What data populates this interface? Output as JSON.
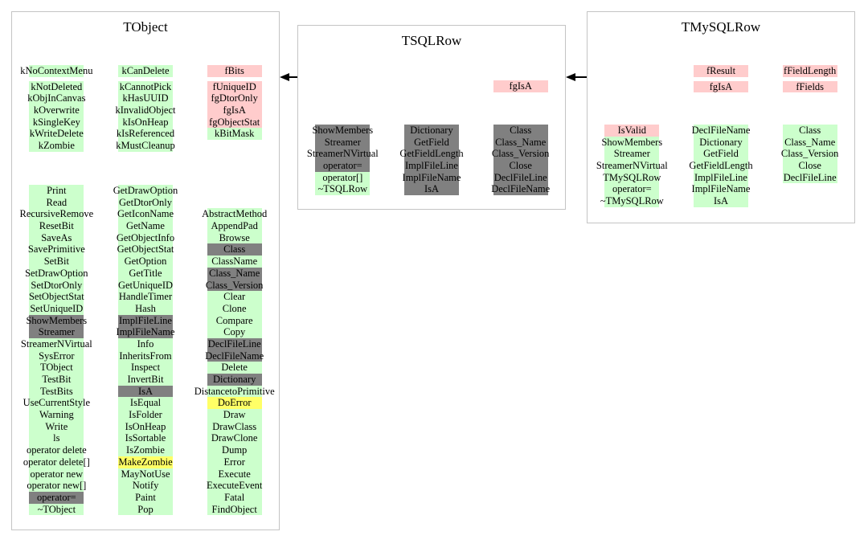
{
  "colors": {
    "green": "#ccffcc",
    "pink": "#ffcccc",
    "gray": "#808080",
    "yellow": "#ffff66",
    "border": "#c4c4c4",
    "arrow": "#000000",
    "background": "#ffffff"
  },
  "relations": [
    {
      "from": "TSQLRow",
      "to": "TObject"
    },
    {
      "from": "TMySQLRow",
      "to": "TSQLRow"
    }
  ],
  "boxes": [
    {
      "title": "TObject",
      "sections": [
        {
          "name": "data-members-and-enums",
          "gap_after_first": true,
          "columns": [
            [
              [
                "kNoContextMenu",
                "green"
              ],
              [
                "kNotDeleted",
                "green"
              ],
              [
                "kObjInCanvas",
                "green"
              ],
              [
                "kOverwrite",
                "green"
              ],
              [
                "kSingleKey",
                "green"
              ],
              [
                "kWriteDelete",
                "green"
              ],
              [
                "kZombie",
                "green"
              ]
            ],
            [
              [
                "kCanDelete",
                "green"
              ],
              [
                "kCannotPick",
                "green"
              ],
              [
                "kHasUUID",
                "green"
              ],
              [
                "kInvalidObject",
                "green"
              ],
              [
                "kIsOnHeap",
                "green"
              ],
              [
                "kIsReferenced",
                "green"
              ],
              [
                "kMustCleanup",
                "green"
              ]
            ],
            [
              [
                "fBits",
                "pink"
              ],
              [
                "fUniqueID",
                "pink"
              ],
              [
                "fgDtorOnly",
                "pink"
              ],
              [
                "fgIsA",
                "pink"
              ],
              [
                "fgObjectStat",
                "pink"
              ],
              [
                "kBitMask",
                "green"
              ]
            ]
          ]
        },
        {
          "name": "methods",
          "gap_after_first": false,
          "columns": [
            [
              [
                "Print",
                "green"
              ],
              [
                "Read",
                "green"
              ],
              [
                "RecursiveRemove",
                "green"
              ],
              [
                "ResetBit",
                "green"
              ],
              [
                "SaveAs",
                "green"
              ],
              [
                "SavePrimitive",
                "green"
              ],
              [
                "SetBit",
                "green"
              ],
              [
                "SetDrawOption",
                "green"
              ],
              [
                "SetDtorOnly",
                "green"
              ],
              [
                "SetObjectStat",
                "green"
              ],
              [
                "SetUniqueID",
                "green"
              ],
              [
                "ShowMembers",
                "gray"
              ],
              [
                "Streamer",
                "gray"
              ],
              [
                "StreamerNVirtual",
                "green"
              ],
              [
                "SysError",
                "green"
              ],
              [
                "TObject",
                "green"
              ],
              [
                "TestBit",
                "green"
              ],
              [
                "TestBits",
                "green"
              ],
              [
                "UseCurrentStyle",
                "green"
              ],
              [
                "Warning",
                "green"
              ],
              [
                "Write",
                "green"
              ],
              [
                "ls",
                "green"
              ],
              [
                "operator delete",
                "green"
              ],
              [
                "operator delete[]",
                "green"
              ],
              [
                "operator new",
                "green"
              ],
              [
                "operator new[]",
                "green"
              ],
              [
                "operator=",
                "gray"
              ],
              [
                "~TObject",
                "green"
              ]
            ],
            [
              [
                "GetDrawOption",
                "green"
              ],
              [
                "GetDtorOnly",
                "green"
              ],
              [
                "GetIconName",
                "green"
              ],
              [
                "GetName",
                "green"
              ],
              [
                "GetObjectInfo",
                "green"
              ],
              [
                "GetObjectStat",
                "green"
              ],
              [
                "GetOption",
                "green"
              ],
              [
                "GetTitle",
                "green"
              ],
              [
                "GetUniqueID",
                "green"
              ],
              [
                "HandleTimer",
                "green"
              ],
              [
                "Hash",
                "green"
              ],
              [
                "ImplFileLine",
                "gray"
              ],
              [
                "ImplFileName",
                "gray"
              ],
              [
                "Info",
                "green"
              ],
              [
                "InheritsFrom",
                "green"
              ],
              [
                "Inspect",
                "green"
              ],
              [
                "InvertBit",
                "green"
              ],
              [
                "IsA",
                "gray"
              ],
              [
                "IsEqual",
                "green"
              ],
              [
                "IsFolder",
                "green"
              ],
              [
                "IsOnHeap",
                "green"
              ],
              [
                "IsSortable",
                "green"
              ],
              [
                "IsZombie",
                "green"
              ],
              [
                "MakeZombie",
                "yellow"
              ],
              [
                "MayNotUse",
                "green"
              ],
              [
                "Notify",
                "green"
              ],
              [
                "Paint",
                "green"
              ],
              [
                "Pop",
                "green"
              ]
            ],
            [
              null,
              null,
              [
                "AbstractMethod",
                "green"
              ],
              [
                "AppendPad",
                "green"
              ],
              [
                "Browse",
                "green"
              ],
              [
                "Class",
                "gray"
              ],
              [
                "ClassName",
                "green"
              ],
              [
                "Class_Name",
                "gray"
              ],
              [
                "Class_Version",
                "gray"
              ],
              [
                "Clear",
                "green"
              ],
              [
                "Clone",
                "green"
              ],
              [
                "Compare",
                "green"
              ],
              [
                "Copy",
                "green"
              ],
              [
                "DeclFileLine",
                "gray"
              ],
              [
                "DeclFileName",
                "gray"
              ],
              [
                "Delete",
                "green"
              ],
              [
                "Dictionary",
                "gray"
              ],
              [
                "DistancetoPrimitive",
                "green"
              ],
              [
                "DoError",
                "yellow"
              ],
              [
                "Draw",
                "green"
              ],
              [
                "DrawClass",
                "green"
              ],
              [
                "DrawClone",
                "green"
              ],
              [
                "Dump",
                "green"
              ],
              [
                "Error",
                "green"
              ],
              [
                "Execute",
                "green"
              ],
              [
                "ExecuteEvent",
                "green"
              ],
              [
                "Fatal",
                "green"
              ],
              [
                "FindObject",
                "green"
              ]
            ]
          ]
        }
      ]
    },
    {
      "title": "TSQLRow",
      "sections": [
        {
          "name": "data-members",
          "gap_after_first": false,
          "columns": [
            [],
            [],
            [
              [
                "fgIsA",
                "pink"
              ]
            ]
          ]
        },
        {
          "name": "methods",
          "gap_after_first": false,
          "columns": [
            [
              [
                "ShowMembers",
                "gray"
              ],
              [
                "Streamer",
                "gray"
              ],
              [
                "StreamerNVirtual",
                "gray"
              ],
              [
                "operator=",
                "gray"
              ],
              [
                "operator[]",
                "green"
              ],
              [
                "~TSQLRow",
                "green"
              ]
            ],
            [
              [
                "Dictionary",
                "gray"
              ],
              [
                "GetField",
                "gray"
              ],
              [
                "GetFieldLength",
                "gray"
              ],
              [
                "ImplFileLine",
                "gray"
              ],
              [
                "ImplFileName",
                "gray"
              ],
              [
                "IsA",
                "gray"
              ]
            ],
            [
              [
                "Class",
                "gray"
              ],
              [
                "Class_Name",
                "gray"
              ],
              [
                "Class_Version",
                "gray"
              ],
              [
                "Close",
                "gray"
              ],
              [
                "DeclFileLine",
                "gray"
              ],
              [
                "DeclFileName",
                "gray"
              ]
            ]
          ]
        }
      ]
    },
    {
      "title": "TMySQLRow",
      "sections": [
        {
          "name": "data-members",
          "gap_after_first": true,
          "columns": [
            [],
            [
              [
                "fResult",
                "pink"
              ],
              [
                "fgIsA",
                "pink"
              ]
            ],
            [
              [
                "fFieldLength",
                "pink"
              ],
              [
                "fFields",
                "pink"
              ]
            ]
          ]
        },
        {
          "name": "methods",
          "gap_after_first": false,
          "columns": [
            [
              [
                "IsValid",
                "pink"
              ],
              [
                "ShowMembers",
                "green"
              ],
              [
                "Streamer",
                "green"
              ],
              [
                "StreamerNVirtual",
                "green"
              ],
              [
                "TMySQLRow",
                "green"
              ],
              [
                "operator=",
                "green"
              ],
              [
                "~TMySQLRow",
                "green"
              ]
            ],
            [
              [
                "DeclFileName",
                "green"
              ],
              [
                "Dictionary",
                "green"
              ],
              [
                "GetField",
                "green"
              ],
              [
                "GetFieldLength",
                "green"
              ],
              [
                "ImplFileLine",
                "green"
              ],
              [
                "ImplFileName",
                "green"
              ],
              [
                "IsA",
                "green"
              ]
            ],
            [
              [
                "Class",
                "green"
              ],
              [
                "Class_Name",
                "green"
              ],
              [
                "Class_Version",
                "green"
              ],
              [
                "Close",
                "green"
              ],
              [
                "DeclFileLine",
                "green"
              ]
            ]
          ]
        }
      ]
    }
  ]
}
